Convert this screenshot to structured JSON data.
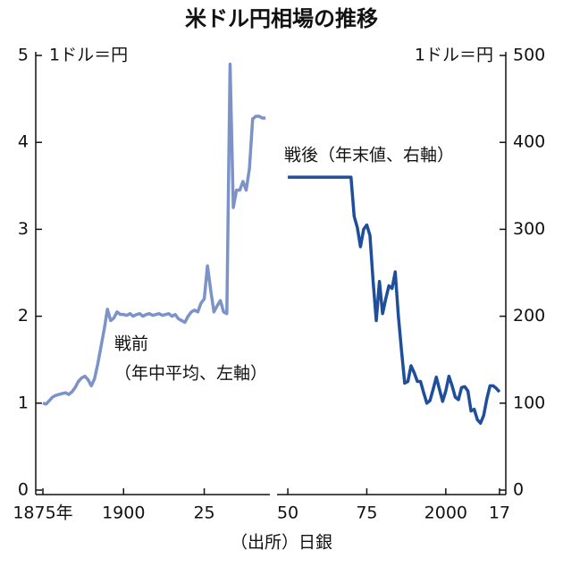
{
  "chart_data": [
    {
      "type": "line",
      "title": "米ドル円相場の推移",
      "y_unit_label": "1ドル＝円",
      "annotation": [
        "戦前",
        "（年中平均、左軸）"
      ],
      "x": [
        1875,
        1876,
        1877,
        1878,
        1879,
        1880,
        1881,
        1882,
        1883,
        1884,
        1885,
        1886,
        1887,
        1888,
        1889,
        1890,
        1891,
        1892,
        1893,
        1894,
        1895,
        1896,
        1897,
        1898,
        1899,
        1900,
        1901,
        1902,
        1903,
        1904,
        1905,
        1906,
        1907,
        1908,
        1909,
        1910,
        1911,
        1912,
        1913,
        1914,
        1915,
        1916,
        1917,
        1918,
        1919,
        1920,
        1921,
        1922,
        1923,
        1924,
        1925,
        1926,
        1927,
        1928,
        1929,
        1930,
        1931,
        1932,
        1933,
        1934,
        1935,
        1936,
        1937,
        1938,
        1939,
        1940,
        1941,
        1942,
        1943,
        1944
      ],
      "series": [
        {
          "color": "#7b93c8",
          "values": [
            1.0,
            0.99,
            1.03,
            1.07,
            1.09,
            1.1,
            1.11,
            1.12,
            1.1,
            1.13,
            1.18,
            1.25,
            1.29,
            1.31,
            1.27,
            1.2,
            1.28,
            1.45,
            1.65,
            1.85,
            2.08,
            1.95,
            1.98,
            2.05,
            2.02,
            2.02,
            2.01,
            2.03,
            2.0,
            2.02,
            2.03,
            2.0,
            2.02,
            2.03,
            2.01,
            2.02,
            2.03,
            2.01,
            2.02,
            2.03,
            2.0,
            2.02,
            1.97,
            1.95,
            1.93,
            2.0,
            2.05,
            2.07,
            2.05,
            2.15,
            2.2,
            2.58,
            2.3,
            2.05,
            2.12,
            2.18,
            2.05,
            2.03,
            4.9,
            3.25,
            3.45,
            3.45,
            3.55,
            3.45,
            3.7,
            4.27,
            4.3,
            4.3,
            4.28,
            4.28
          ]
        }
      ],
      "xlim": [
        1875,
        1947
      ],
      "xticks": [
        {
          "value": 1875,
          "label": "1875年"
        },
        1900,
        {
          "value": 1925,
          "label": "25"
        }
      ],
      "ylim": [
        0,
        5
      ],
      "yticks": [
        0,
        1,
        2,
        3,
        4,
        5
      ]
    },
    {
      "type": "line",
      "y_unit_label": "1ドル＝円",
      "annotation": [
        "戦後（年末値、右軸）"
      ],
      "source": "（出所）日銀",
      "x": [
        1950,
        1951,
        1952,
        1953,
        1954,
        1955,
        1956,
        1957,
        1958,
        1959,
        1960,
        1961,
        1962,
        1963,
        1964,
        1965,
        1966,
        1967,
        1968,
        1969,
        1970,
        1971,
        1972,
        1973,
        1974,
        1975,
        1976,
        1977,
        1978,
        1979,
        1980,
        1981,
        1982,
        1983,
        1984,
        1985,
        1986,
        1987,
        1988,
        1989,
        1990,
        1991,
        1992,
        1993,
        1994,
        1995,
        1996,
        1997,
        1998,
        1999,
        2000,
        2001,
        2002,
        2003,
        2004,
        2005,
        2006,
        2007,
        2008,
        2009,
        2010,
        2011,
        2012,
        2013,
        2014,
        2015,
        2016,
        2017
      ],
      "series": [
        {
          "color": "#1f4e9a",
          "values": [
            360,
            360,
            360,
            360,
            360,
            360,
            360,
            360,
            360,
            360,
            360,
            360,
            360,
            360,
            360,
            360,
            360,
            360,
            360,
            360,
            360,
            315,
            302,
            280,
            300,
            305,
            293,
            240,
            195,
            240,
            203,
            220,
            235,
            232,
            251,
            200,
            160,
            123,
            125,
            143,
            135,
            125,
            125,
            112,
            100,
            103,
            116,
            130,
            116,
            102,
            114,
            131,
            120,
            107,
            104,
            118,
            119,
            114,
            91,
            93,
            81,
            77,
            86,
            105,
            120,
            120,
            117,
            113
          ]
        }
      ],
      "xlim": [
        1948,
        2019
      ],
      "xticks": [
        {
          "value": 1950,
          "label": "50"
        },
        {
          "value": 1975,
          "label": "75"
        },
        2000,
        {
          "value": 2017,
          "label": "17"
        }
      ],
      "ylim": [
        0,
        500
      ],
      "yticks": [
        0,
        100,
        200,
        300,
        400,
        500
      ]
    }
  ]
}
